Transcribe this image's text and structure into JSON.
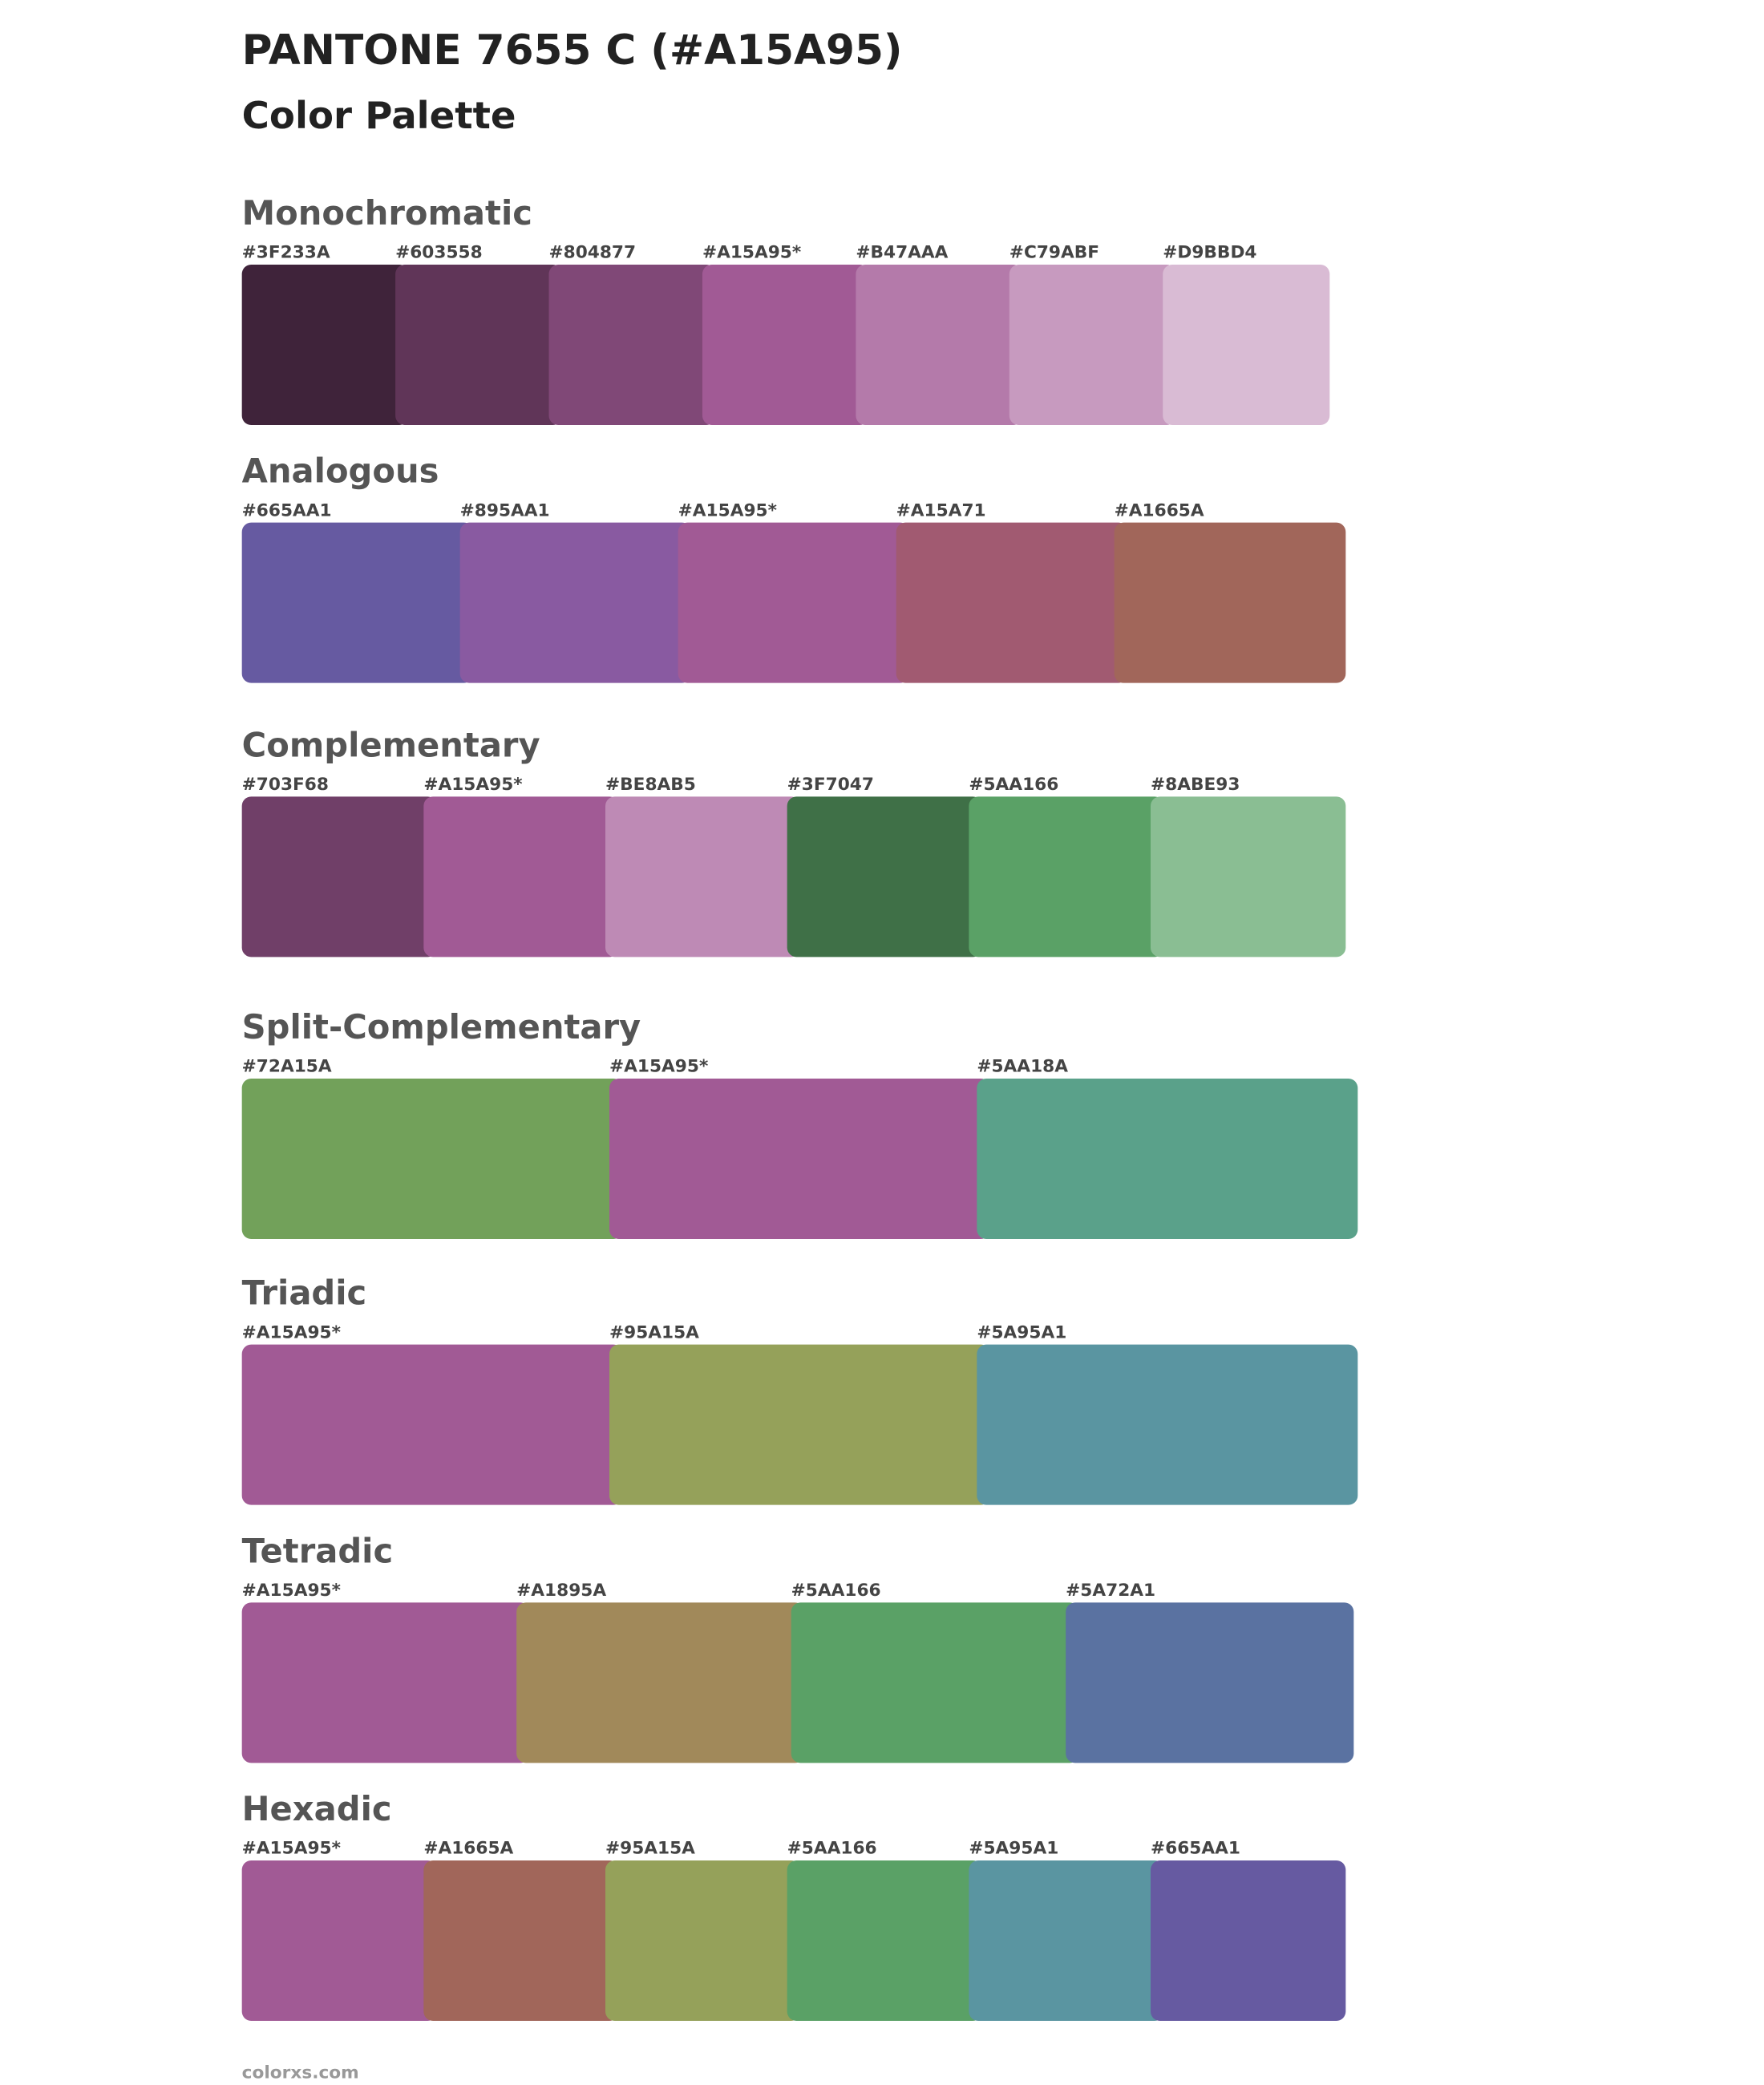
{
  "header": {
    "title": "PANTONE 7655 C (#A15A95)",
    "subtitle": "Color Palette"
  },
  "sections": [
    {
      "name": "Monochromatic",
      "swatches": [
        {
          "label": "#3F233A",
          "color": "#3F233A"
        },
        {
          "label": "#603558",
          "color": "#603558"
        },
        {
          "label": "#804877",
          "color": "#804877"
        },
        {
          "label": "#A15A95*",
          "color": "#A15A95"
        },
        {
          "label": "#B47AAA",
          "color": "#B47AAA"
        },
        {
          "label": "#C79ABF",
          "color": "#C79ABF"
        },
        {
          "label": "#D9BBD4",
          "color": "#D9BBD4"
        }
      ]
    },
    {
      "name": "Analogous",
      "swatches": [
        {
          "label": "#665AA1",
          "color": "#665AA1"
        },
        {
          "label": "#895AA1",
          "color": "#895AA1"
        },
        {
          "label": "#A15A95*",
          "color": "#A15A95"
        },
        {
          "label": "#A15A71",
          "color": "#A15A71"
        },
        {
          "label": "#A1665A",
          "color": "#A1665A"
        }
      ]
    },
    {
      "name": "Complementary",
      "swatches": [
        {
          "label": "#703F68",
          "color": "#703F68"
        },
        {
          "label": "#A15A95*",
          "color": "#A15A95"
        },
        {
          "label": "#BE8AB5",
          "color": "#BE8AB5"
        },
        {
          "label": "#3F7047",
          "color": "#3F7047"
        },
        {
          "label": "#5AA166",
          "color": "#5AA166"
        },
        {
          "label": "#8ABE93",
          "color": "#8ABE93"
        }
      ]
    },
    {
      "name": "Split-Complementary",
      "swatches": [
        {
          "label": "#72A15A",
          "color": "#72A15A"
        },
        {
          "label": "#A15A95*",
          "color": "#A15A95"
        },
        {
          "label": "#5AA18A",
          "color": "#5AA18A"
        }
      ]
    },
    {
      "name": "Triadic",
      "swatches": [
        {
          "label": "#A15A95*",
          "color": "#A15A95"
        },
        {
          "label": "#95A15A",
          "color": "#95A15A"
        },
        {
          "label": "#5A95A1",
          "color": "#5A95A1"
        }
      ]
    },
    {
      "name": "Tetradic",
      "swatches": [
        {
          "label": "#A15A95*",
          "color": "#A15A95"
        },
        {
          "label": "#A1895A",
          "color": "#A1895A"
        },
        {
          "label": "#5AA166",
          "color": "#5AA166"
        },
        {
          "label": "#5A72A1",
          "color": "#5A72A1"
        }
      ]
    },
    {
      "name": "Hexadic",
      "swatches": [
        {
          "label": "#A15A95*",
          "color": "#A15A95"
        },
        {
          "label": "#A1665A",
          "color": "#A1665A"
        },
        {
          "label": "#95A15A",
          "color": "#95A15A"
        },
        {
          "label": "#5AA166",
          "color": "#5AA166"
        },
        {
          "label": "#5A95A1",
          "color": "#5A95A1"
        },
        {
          "label": "#665AA1",
          "color": "#665AA1"
        }
      ]
    }
  ],
  "footer": "colorxs.com"
}
